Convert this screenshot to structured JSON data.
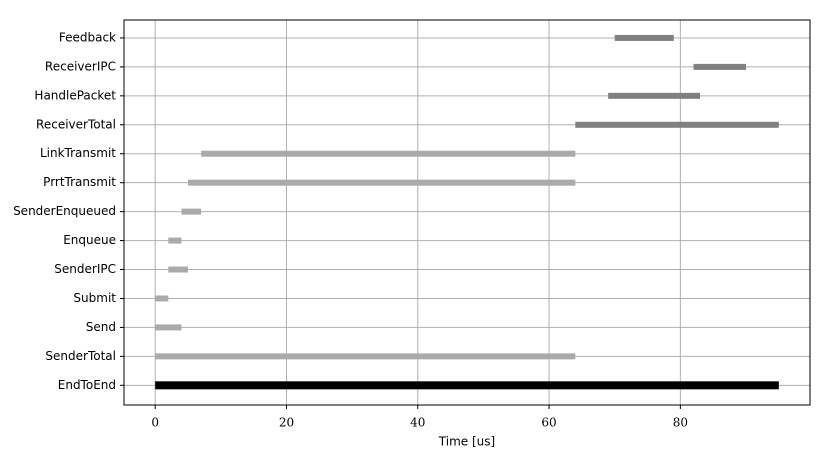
{
  "chart_data": {
    "type": "range-bar",
    "xlabel": "Time [us]",
    "categories": [
      "Feedback",
      "ReceiverIPC",
      "HandlePacket",
      "ReceiverTotal",
      "LinkTransmit",
      "PrrtTransmit",
      "SenderEnqueued",
      "Enqueue",
      "SenderIPC",
      "Submit",
      "Send",
      "SenderTotal",
      "EndToEnd"
    ],
    "starts": [
      70,
      82,
      69,
      64,
      7,
      5,
      4,
      2,
      2,
      0,
      0,
      0,
      0
    ],
    "ends": [
      79,
      90,
      83,
      95,
      64,
      64,
      7,
      4,
      5,
      2,
      4,
      64,
      95
    ],
    "colors": [
      "#808080",
      "#808080",
      "#808080",
      "#808080",
      "#aaaaaa",
      "#aaaaaa",
      "#aaaaaa",
      "#aaaaaa",
      "#aaaaaa",
      "#aaaaaa",
      "#aaaaaa",
      "#aaaaaa",
      "#000000"
    ],
    "xlim": [
      -4.75,
      99.75
    ],
    "xticks": [
      0,
      20,
      40,
      60,
      80
    ],
    "grid": true
  }
}
